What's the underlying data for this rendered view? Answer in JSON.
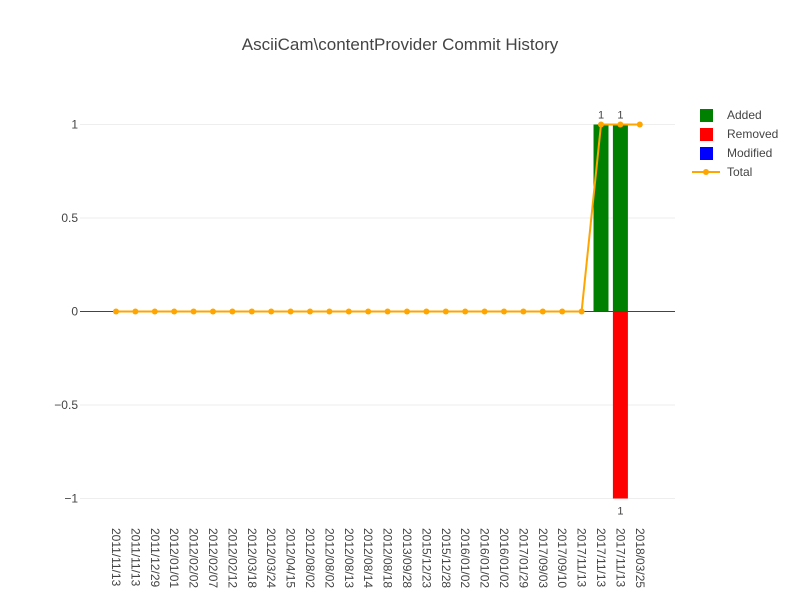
{
  "chart_data": {
    "type": "bar",
    "title": "AsciiCam\\contentProvider Commit History",
    "xlabel": "",
    "ylabel": "",
    "ylim": [
      -1.1,
      1.25
    ],
    "y_ticks": [
      1,
      0.5,
      0,
      -0.5,
      -1
    ],
    "y_tick_labels": [
      "1",
      "0.5",
      "0",
      "−0.5",
      "−1"
    ],
    "grid": true,
    "legend_position": "top-right",
    "categories": [
      "2011/11/13",
      "2011/11/13",
      "2011/12/29",
      "2012/01/01",
      "2012/02/02",
      "2012/02/07",
      "2012/02/12",
      "2012/03/18",
      "2012/03/24",
      "2012/04/15",
      "2012/08/02",
      "2012/08/02",
      "2012/08/13",
      "2012/08/14",
      "2012/08/18",
      "2013/09/28",
      "2015/12/23",
      "2015/12/28",
      "2016/01/02",
      "2016/01/02",
      "2016/01/02",
      "2017/01/29",
      "2017/09/03",
      "2017/09/10",
      "2017/11/13",
      "2017/11/13",
      "2017/11/13",
      "2018/03/25"
    ],
    "series": [
      {
        "name": "Added",
        "type": "bar",
        "color": "#008000",
        "values": [
          0,
          0,
          0,
          0,
          0,
          0,
          0,
          0,
          0,
          0,
          0,
          0,
          0,
          0,
          0,
          0,
          0,
          0,
          0,
          0,
          0,
          0,
          0,
          0,
          0,
          1,
          1,
          0
        ],
        "labels": [
          "",
          "",
          "",
          "",
          "",
          "",
          "",
          "",
          "",
          "",
          "",
          "",
          "",
          "",
          "",
          "",
          "",
          "",
          "",
          "",
          "",
          "",
          "",
          "",
          "",
          "1",
          "1",
          ""
        ]
      },
      {
        "name": "Removed",
        "type": "bar",
        "color": "#ff0000",
        "values": [
          0,
          0,
          0,
          0,
          0,
          0,
          0,
          0,
          0,
          0,
          0,
          0,
          0,
          0,
          0,
          0,
          0,
          0,
          0,
          0,
          0,
          0,
          0,
          0,
          0,
          0,
          -1,
          0
        ],
        "labels": [
          "",
          "",
          "",
          "",
          "",
          "",
          "",
          "",
          "",
          "",
          "",
          "",
          "",
          "",
          "",
          "",
          "",
          "",
          "",
          "",
          "",
          "",
          "",
          "",
          "",
          "",
          "1",
          ""
        ]
      },
      {
        "name": "Modified",
        "type": "bar",
        "color": "#0000ff",
        "values": [
          0,
          0,
          0,
          0,
          0,
          0,
          0,
          0,
          0,
          0,
          0,
          0,
          0,
          0,
          0,
          0,
          0,
          0,
          0,
          0,
          0,
          0,
          0,
          0,
          0,
          0,
          0,
          0
        ],
        "labels": [
          "",
          "",
          "",
          "",
          "",
          "",
          "",
          "",
          "",
          "",
          "",
          "",
          "",
          "",
          "",
          "",
          "",
          "",
          "",
          "",
          "",
          "",
          "",
          "",
          "",
          "",
          "",
          ""
        ]
      },
      {
        "name": "Total",
        "type": "line",
        "color": "#ffa500",
        "values": [
          0,
          0,
          0,
          0,
          0,
          0,
          0,
          0,
          0,
          0,
          0,
          0,
          0,
          0,
          0,
          0,
          0,
          0,
          0,
          0,
          0,
          0,
          0,
          0,
          0,
          1,
          1,
          1
        ]
      }
    ],
    "axis_color": "#444444",
    "grid_color": "#eeeeee",
    "zero_line_color": "#444444",
    "text_color": "#444444"
  }
}
